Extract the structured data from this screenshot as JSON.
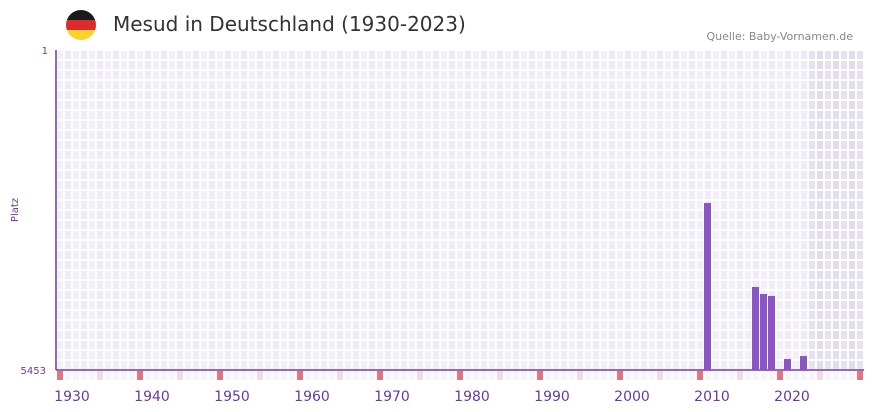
{
  "header": {
    "title": "Mesud in Deutschland (1930-2023)",
    "source": "Quelle: Baby-Vornamen.de",
    "flag_colors": [
      "#1a1a1a",
      "#dd2a2a",
      "#fcd22a"
    ]
  },
  "chart_data": {
    "type": "bar",
    "title": "Mesud in Deutschland (1930-2023)",
    "ylabel": "Platz",
    "ylim": [
      5453,
      1
    ],
    "y_ticks": [
      "1",
      "5453"
    ],
    "x_range": [
      1928,
      2028
    ],
    "x_ticks": [
      "1930",
      "1940",
      "1950",
      "1960",
      "1970",
      "1980",
      "1990",
      "2000",
      "2010",
      "2020"
    ],
    "x": [
      2009,
      2015,
      2016,
      2017,
      2019,
      2021
    ],
    "values": [
      2607,
      4039,
      4158,
      4192,
      5266,
      5215
    ],
    "bar_color": "#8b55c8",
    "future_from": 2022
  }
}
